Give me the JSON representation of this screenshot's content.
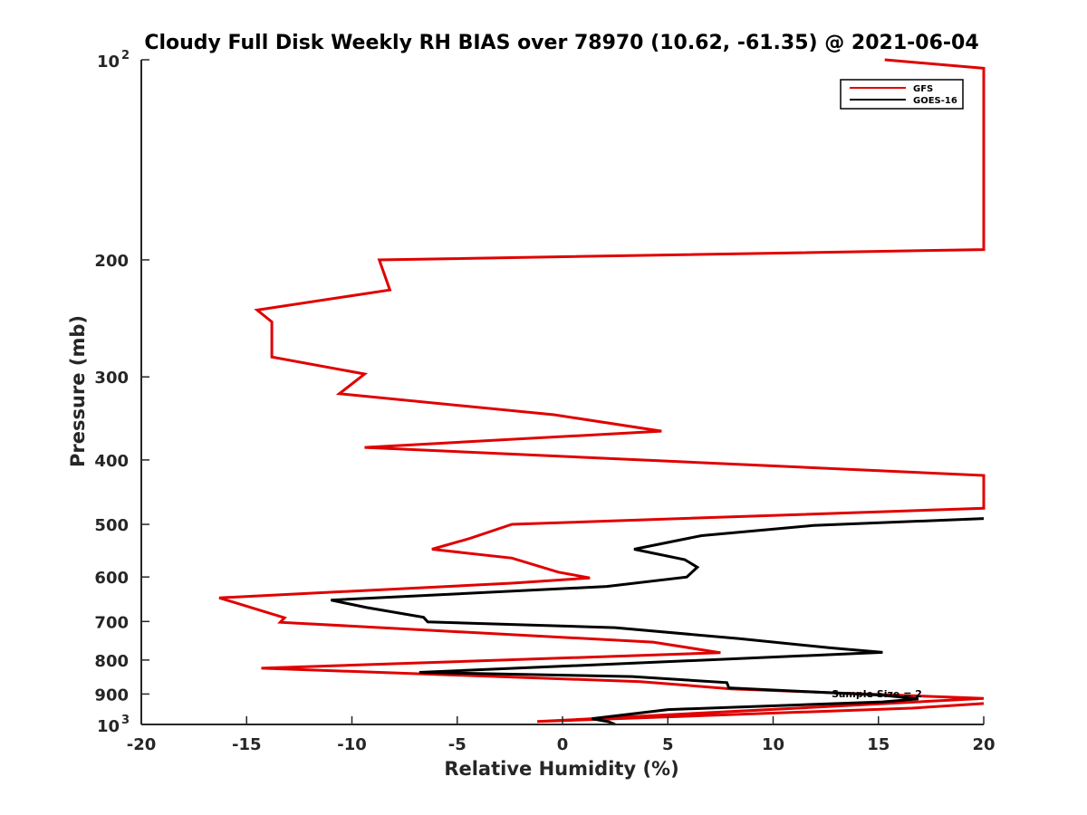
{
  "chart_data": {
    "type": "line",
    "title": "Cloudy Full Disk Weekly RH BIAS over 78970 (10.62, -61.35) @ 2021-06-04",
    "xlabel": "Relative Humidity (%)",
    "ylabel": "Pressure (mb)",
    "xlim": [
      -20,
      20
    ],
    "ylim": [
      100,
      1000
    ],
    "yscale": "log",
    "y_reversed": true,
    "xticks": [
      -20,
      -15,
      -10,
      -5,
      0,
      5,
      10,
      15,
      20
    ],
    "yticks": [
      {
        "value": 100,
        "label": "10",
        "exp": "2"
      },
      {
        "value": 200,
        "label": "200"
      },
      {
        "value": 300,
        "label": "300"
      },
      {
        "value": 400,
        "label": "400"
      },
      {
        "value": 500,
        "label": "500"
      },
      {
        "value": 600,
        "label": "600"
      },
      {
        "value": 700,
        "label": "700"
      },
      {
        "value": 800,
        "label": "800"
      },
      {
        "value": 900,
        "label": "900"
      },
      {
        "value": 1000,
        "label": "10",
        "exp": "3"
      }
    ],
    "grid": false,
    "legend_position": "top-right",
    "annotation": "Sample Size = 2",
    "series": [
      {
        "name": "GFS",
        "color": "#e00000",
        "points": [
          [
            15.3,
            100
          ],
          [
            20.0,
            103
          ],
          [
            20.0,
            193
          ],
          [
            -8.7,
            200
          ],
          [
            -8.2,
            222
          ],
          [
            -14.5,
            238
          ],
          [
            -13.8,
            248
          ],
          [
            -13.8,
            280
          ],
          [
            -9.4,
            297
          ],
          [
            -10.6,
            318
          ],
          [
            -0.4,
            342
          ],
          [
            4.7,
            362
          ],
          [
            -9.4,
            383
          ],
          [
            20.0,
            422
          ],
          [
            20.0,
            473
          ],
          [
            -2.4,
            500
          ],
          [
            -4.4,
            525
          ],
          [
            -6.2,
            545
          ],
          [
            -2.4,
            562
          ],
          [
            -0.2,
            590
          ],
          [
            1.3,
            602
          ],
          [
            -2.4,
            613
          ],
          [
            -16.3,
            645
          ],
          [
            -13.2,
            691
          ],
          [
            -13.4,
            702
          ],
          [
            4.3,
            752
          ],
          [
            7.5,
            780
          ],
          [
            -14.3,
            823
          ],
          [
            3.7,
            862
          ],
          [
            8.0,
            884
          ],
          [
            20.0,
            914
          ],
          [
            -1.2,
            990
          ],
          [
            16.6,
            945
          ],
          [
            20.0,
            930
          ]
        ]
      },
      {
        "name": "GOES-16",
        "color": "#000000",
        "points": [
          [
            20.0,
            490
          ],
          [
            11.9,
            502
          ],
          [
            6.6,
            520
          ],
          [
            3.4,
            545
          ],
          [
            5.8,
            565
          ],
          [
            6.4,
            580
          ],
          [
            5.9,
            600
          ],
          [
            2.1,
            620
          ],
          [
            -11.0,
            650
          ],
          [
            -9.3,
            667
          ],
          [
            -6.6,
            690
          ],
          [
            -6.4,
            701
          ],
          [
            2.5,
            715
          ],
          [
            8.4,
            743
          ],
          [
            12.7,
            767
          ],
          [
            15.2,
            779
          ],
          [
            -6.8,
            835
          ],
          [
            3.3,
            847
          ],
          [
            7.8,
            865
          ],
          [
            7.9,
            881
          ],
          [
            15.2,
            904
          ],
          [
            16.9,
            915
          ],
          [
            15.2,
            925
          ],
          [
            5.0,
            950
          ],
          [
            1.4,
            980
          ],
          [
            2.2,
            991
          ],
          [
            2.5,
            1000
          ]
        ]
      }
    ]
  }
}
